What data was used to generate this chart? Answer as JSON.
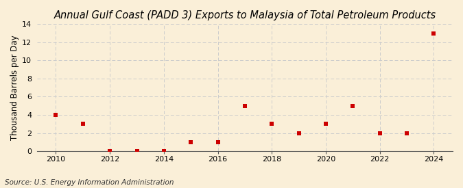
{
  "title": "Annual Gulf Coast (PADD 3) Exports to Malaysia of Total Petroleum Products",
  "ylabel": "Thousand Barrels per Day",
  "source": "Source: U.S. Energy Information Administration",
  "background_color": "#faefd8",
  "years": [
    2010,
    2011,
    2012,
    2013,
    2014,
    2015,
    2016,
    2017,
    2018,
    2019,
    2020,
    2021,
    2022,
    2023,
    2024
  ],
  "values": [
    4,
    3,
    0,
    0,
    0,
    1,
    1,
    5,
    3,
    2,
    3,
    5,
    2,
    2,
    13
  ],
  "marker_color": "#cc0000",
  "marker_size": 18,
  "ylim": [
    0,
    14
  ],
  "yticks": [
    0,
    2,
    4,
    6,
    8,
    10,
    12,
    14
  ],
  "xticks": [
    2010,
    2012,
    2014,
    2016,
    2018,
    2020,
    2022,
    2024
  ],
  "grid_color": "#cccccc",
  "title_fontsize": 10.5,
  "ylabel_fontsize": 8.5,
  "source_fontsize": 7.5,
  "tick_fontsize": 8
}
